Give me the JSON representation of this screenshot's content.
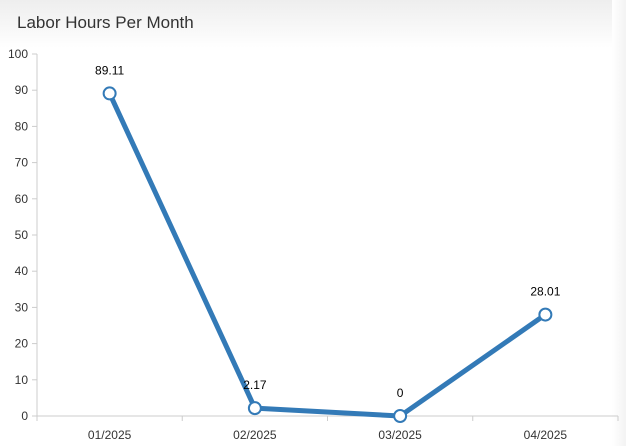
{
  "chart_title": "Labor Hours Per Month",
  "colors": {
    "line": "#337ab7",
    "marker_fill": "#ffffff",
    "axis": "#cccccc",
    "text": "#333333"
  },
  "chart_data": {
    "type": "line",
    "title": "Labor Hours Per Month",
    "xlabel": "",
    "ylabel": "",
    "categories": [
      "01/2025",
      "02/2025",
      "03/2025",
      "04/2025"
    ],
    "series": [
      {
        "values": [
          89.11,
          2.17,
          0,
          28.01
        ]
      }
    ],
    "data_labels": [
      "89.11",
      "2.17",
      "0",
      "28.01"
    ],
    "ylim": [
      0,
      100
    ],
    "yticks": [
      0,
      10,
      20,
      30,
      40,
      50,
      60,
      70,
      80,
      90,
      100
    ],
    "grid": false,
    "legend": "none"
  }
}
